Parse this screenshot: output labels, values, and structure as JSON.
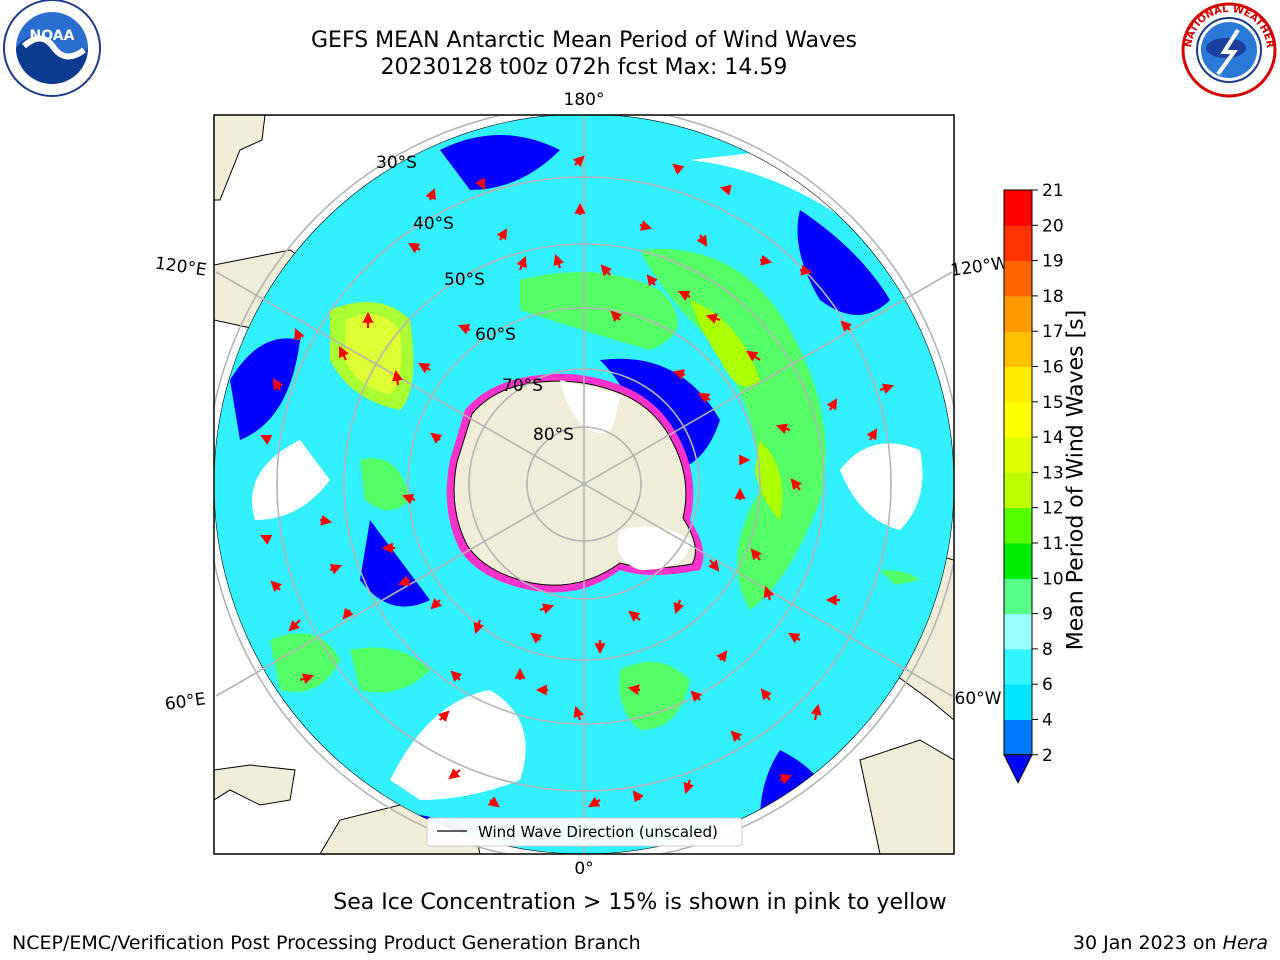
{
  "header": {
    "title_line1": "GEFS MEAN Antarctic Mean Period of Wind Waves",
    "title_line2": "20230128 t00z 072h fcst   Max: 14.59"
  },
  "logos": {
    "left": {
      "name": "noaa-logo",
      "text": "NOAA"
    },
    "right": {
      "name": "nws-logo",
      "text": "NATIONAL WEATHER SERVICE"
    }
  },
  "map": {
    "projection": "south-polar-stereographic",
    "longitude_labels": [
      "180°",
      "120°E",
      "120°W",
      "60°E",
      "60°W",
      "0°"
    ],
    "latitude_labels": [
      "30°S",
      "40°S",
      "50°S",
      "60°S",
      "70°S",
      "80°S"
    ],
    "legend": "Wind Wave Direction (unscaled)",
    "colors": {
      "land": "#efecd8",
      "coast": "#000000",
      "grid": "#b4b4b4",
      "arrow": "#ff0000",
      "ice": "#ff33cc"
    }
  },
  "colorbar": {
    "label": "Mean Period of Wind Waves [s]",
    "ticks": [
      "2",
      "4",
      "6",
      "8",
      "9",
      "10",
      "11",
      "12",
      "13",
      "14",
      "15",
      "16",
      "17",
      "18",
      "19",
      "20",
      "21"
    ],
    "colors": [
      "#0077ff",
      "#00e5ff",
      "#33f5ff",
      "#99ffff",
      "#55ff88",
      "#00ee00",
      "#55ff00",
      "#bbff00",
      "#ddff00",
      "#ffff00",
      "#ffea00",
      "#ffc000",
      "#ff9900",
      "#ff6600",
      "#ff3300",
      "#ff0000"
    ],
    "under_color": "#0000ff"
  },
  "caption": "Sea Ice Concentration > 15% is shown in pink to yellow",
  "footer": {
    "left": "NCEP/EMC/Verification Post Processing Product Generation Branch",
    "right_prefix": "30 Jan 2023 on ",
    "right_system": "Hera"
  }
}
